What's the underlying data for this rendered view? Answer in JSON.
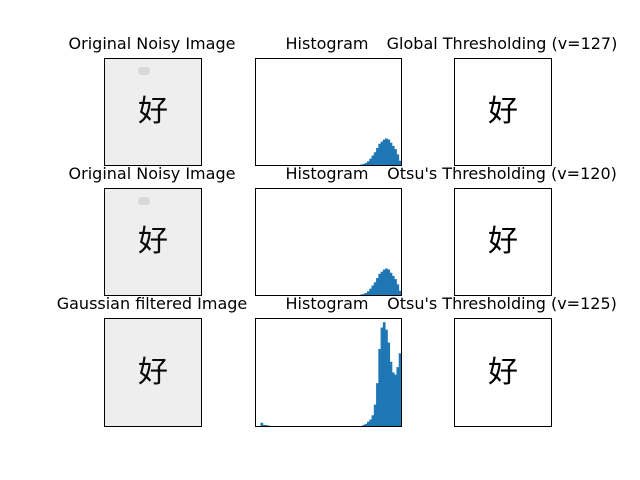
{
  "figure": {
    "titles": {
      "r0c0": "Original Noisy Image",
      "r0c1": "Histogram",
      "r0c2": "Global Thresholding (v=127)",
      "r1c0": "Original Noisy Image",
      "r1c1": "Histogram",
      "r1c2": "Otsu's Thresholding (v=120)",
      "r2c0": "Gaussian filtered Image",
      "r2c1": "Histogram",
      "r2c2": "Otsu's Thresholding (v=125)"
    },
    "image_glyph": "好"
  },
  "chart_data": [
    {
      "type": "bar",
      "title": "Histogram",
      "xlim": [
        0,
        256
      ],
      "ylim": [
        0,
        1
      ],
      "bar_color": "#1f77b4",
      "x": [
        182,
        186,
        190,
        194,
        198,
        202,
        206,
        210,
        214,
        218,
        222,
        226,
        230,
        234,
        238,
        242,
        246,
        250,
        254
      ],
      "values": [
        0.0,
        0.005,
        0.01,
        0.02,
        0.035,
        0.06,
        0.09,
        0.12,
        0.16,
        0.2,
        0.22,
        0.24,
        0.25,
        0.24,
        0.21,
        0.18,
        0.15,
        0.1,
        0.04
      ]
    },
    {
      "type": "bar",
      "title": "Histogram",
      "xlim": [
        0,
        256
      ],
      "ylim": [
        0,
        1
      ],
      "bar_color": "#1f77b4",
      "x": [
        182,
        186,
        190,
        194,
        198,
        202,
        206,
        210,
        214,
        218,
        222,
        226,
        230,
        234,
        238,
        242,
        246,
        250,
        254
      ],
      "values": [
        0.0,
        0.005,
        0.01,
        0.02,
        0.035,
        0.06,
        0.09,
        0.12,
        0.16,
        0.2,
        0.22,
        0.24,
        0.25,
        0.24,
        0.21,
        0.18,
        0.15,
        0.1,
        0.04
      ]
    },
    {
      "type": "bar",
      "title": "Histogram",
      "xlim": [
        0,
        256
      ],
      "ylim": [
        0,
        1
      ],
      "bar_color": "#1f77b4",
      "x": [
        10,
        14,
        18,
        22,
        190,
        194,
        198,
        202,
        206,
        210,
        214,
        218,
        222,
        226,
        230,
        234,
        238,
        242,
        246,
        250,
        254,
        258,
        262,
        266
      ],
      "values": [
        0.03,
        0.01,
        0.008,
        0.004,
        0.01,
        0.02,
        0.04,
        0.06,
        0.1,
        0.2,
        0.4,
        0.72,
        0.92,
        0.97,
        0.9,
        0.78,
        0.6,
        0.5,
        0.48,
        0.55,
        0.68,
        0.75,
        0.6,
        0.2
      ]
    }
  ]
}
